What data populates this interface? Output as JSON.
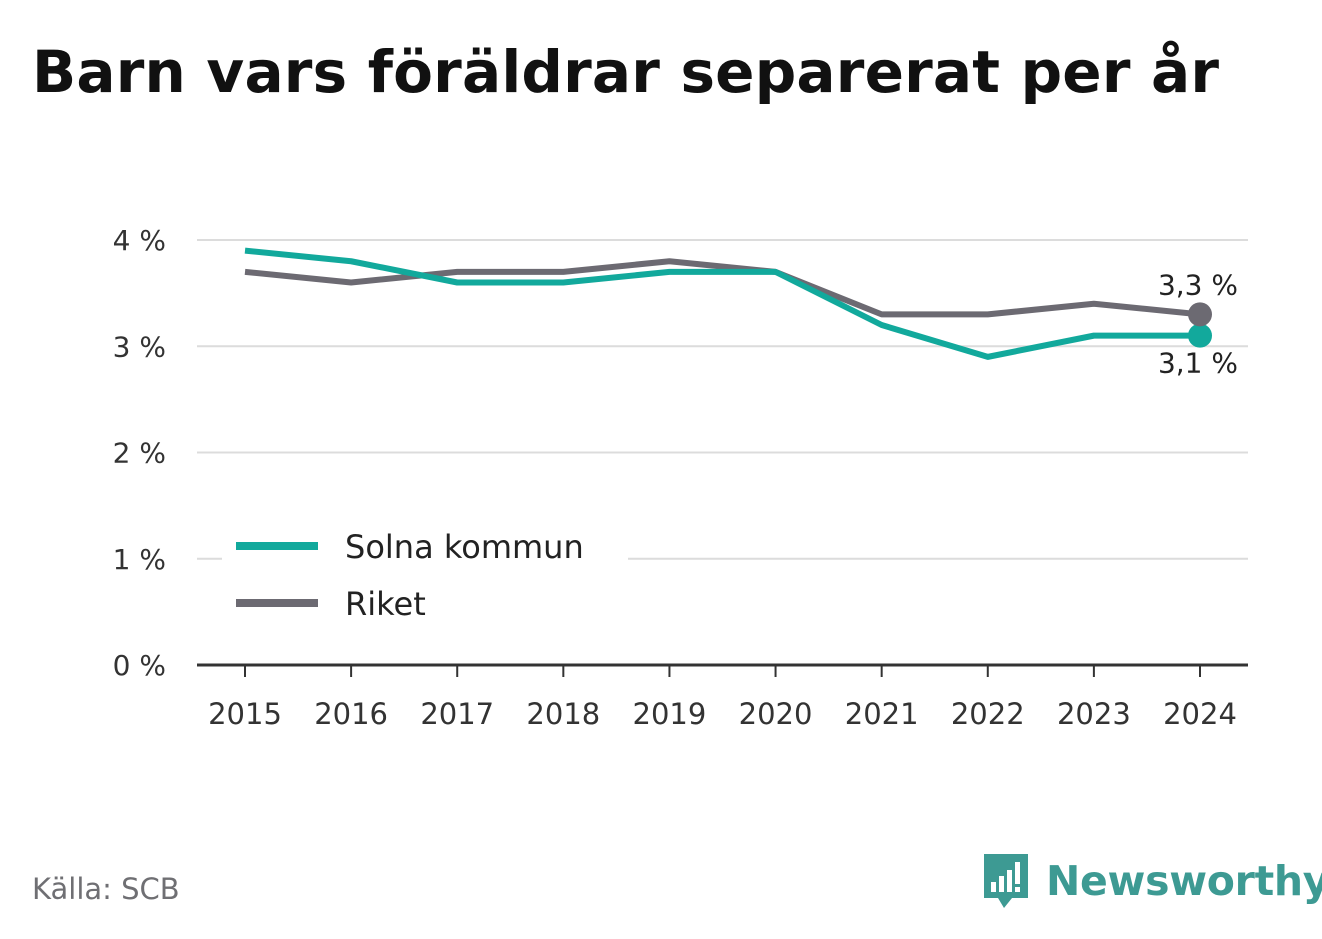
{
  "page": {
    "title": "Barn vars föräldrar separerat per år",
    "source": "Källa: SCB",
    "brand": "Newsworthy"
  },
  "colors": {
    "solna": "#12a99c",
    "riket": "#6c6a72",
    "grid": "#dcdcdc",
    "axis": "#333333",
    "text": "#333333",
    "brand": "#3d9a93"
  },
  "icons": {
    "brand_logo": "bar-chart-speech-bubble-icon"
  },
  "chart_data": {
    "type": "line",
    "title": "Barn vars föräldrar separerat per år",
    "xlabel": "",
    "ylabel": "",
    "x": [
      "2015",
      "2016",
      "2017",
      "2018",
      "2019",
      "2020",
      "2021",
      "2022",
      "2023",
      "2024"
    ],
    "ylim": [
      0,
      4
    ],
    "yticks": [
      0,
      1,
      2,
      3,
      4
    ],
    "ytick_labels": [
      "0 %",
      "1 %",
      "2 %",
      "3 %",
      "4 %"
    ],
    "grid": true,
    "legend": "bottom-left",
    "series": [
      {
        "name": "Solna kommun",
        "color": "#12a99c",
        "values": [
          3.9,
          3.8,
          3.6,
          3.6,
          3.7,
          3.7,
          3.2,
          2.9,
          3.1,
          3.1
        ],
        "end_label": "3,1 %"
      },
      {
        "name": "Riket",
        "color": "#6c6a72",
        "values": [
          3.7,
          3.6,
          3.7,
          3.7,
          3.8,
          3.7,
          3.3,
          3.3,
          3.4,
          3.3
        ],
        "end_label": "3,3 %"
      }
    ]
  }
}
